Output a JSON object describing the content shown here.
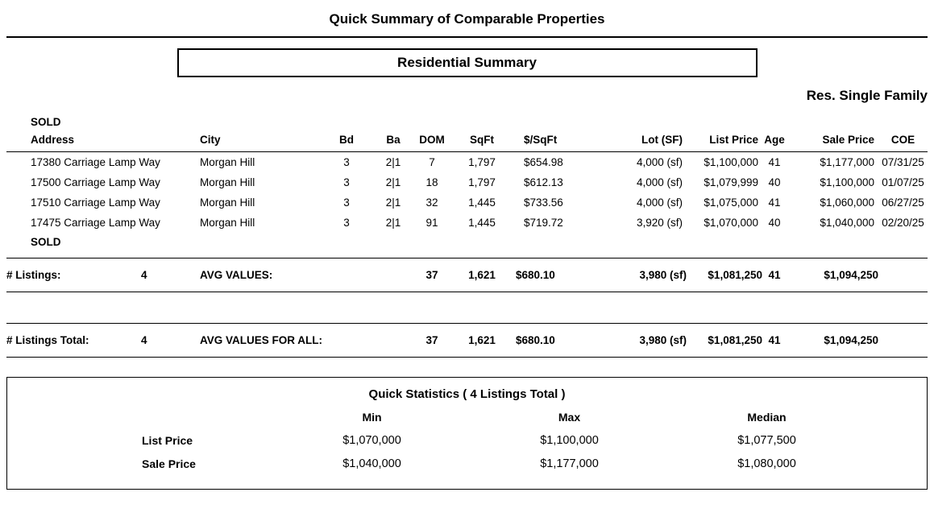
{
  "report": {
    "title": "Quick Summary of Comparable Properties",
    "section_title": "Residential Summary",
    "property_class": "Res. Single Family"
  },
  "table": {
    "status_label_top": "SOLD",
    "status_label_bottom": "SOLD",
    "headers": {
      "address": "Address",
      "city": "City",
      "bd": "Bd",
      "ba": "Ba",
      "dom": "DOM",
      "sqft": "SqFt",
      "price_per_sqft": "$/SqFt",
      "lot": "Lot (SF)",
      "list_price": "List Price",
      "age": "Age",
      "sale_price": "Sale Price",
      "coe": "COE"
    },
    "rows": [
      {
        "address": "17380 Carriage Lamp Way",
        "city": "Morgan Hill",
        "bd": "3",
        "ba": "2|1",
        "dom": "7",
        "sqft": "1,797",
        "price_per_sqft": "$654.98",
        "lot": "4,000 (sf)",
        "list_price": "$1,100,000",
        "age": "41",
        "sale_price": "$1,177,000",
        "coe": "07/31/25"
      },
      {
        "address": "17500 Carriage Lamp Way",
        "city": "Morgan Hill",
        "bd": "3",
        "ba": "2|1",
        "dom": "18",
        "sqft": "1,797",
        "price_per_sqft": "$612.13",
        "lot": "4,000 (sf)",
        "list_price": "$1,079,999",
        "age": "40",
        "sale_price": "$1,100,000",
        "coe": "01/07/25"
      },
      {
        "address": "17510 Carriage Lamp Way",
        "city": "Morgan Hill",
        "bd": "3",
        "ba": "2|1",
        "dom": "32",
        "sqft": "1,445",
        "price_per_sqft": "$733.56",
        "lot": "4,000 (sf)",
        "list_price": "$1,075,000",
        "age": "41",
        "sale_price": "$1,060,000",
        "coe": "06/27/25"
      },
      {
        "address": "17475 Carriage Lamp Way",
        "city": "Morgan Hill",
        "bd": "3",
        "ba": "2|1",
        "dom": "91",
        "sqft": "1,445",
        "price_per_sqft": "$719.72",
        "lot": "3,920 (sf)",
        "list_price": "$1,070,000",
        "age": "40",
        "sale_price": "$1,040,000",
        "coe": "02/20/25"
      }
    ]
  },
  "averages": {
    "listings_label": "# Listings:",
    "listings_count": "4",
    "values_label": "AVG VALUES:",
    "dom": "37",
    "sqft": "1,621",
    "price_per_sqft": "$680.10",
    "lot": "3,980 (sf)",
    "list_price": "$1,081,250",
    "age": "41",
    "sale_price": "$1,094,250"
  },
  "totals": {
    "listings_label": "# Listings Total:",
    "listings_count": "4",
    "values_label": "AVG VALUES FOR ALL:",
    "dom": "37",
    "sqft": "1,621",
    "price_per_sqft": "$680.10",
    "lot": "3,980 (sf)",
    "list_price": "$1,081,250",
    "age": "41",
    "sale_price": "$1,094,250"
  },
  "quick_stats": {
    "title": "Quick Statistics ( 4 Listings Total )",
    "headers": {
      "min": "Min",
      "max": "Max",
      "median": "Median"
    },
    "rows": [
      {
        "label": "List Price",
        "min": "$1,070,000",
        "max": "$1,100,000",
        "median": "$1,077,500"
      },
      {
        "label": "Sale Price",
        "min": "$1,040,000",
        "max": "$1,177,000",
        "median": "$1,080,000"
      }
    ]
  }
}
